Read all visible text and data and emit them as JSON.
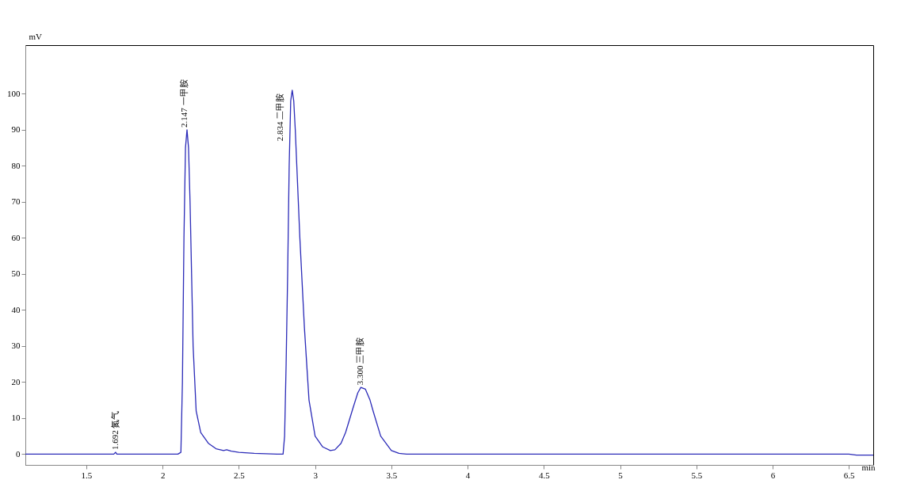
{
  "chart_data": {
    "type": "line",
    "xlabel": "min",
    "ylabel": "mV",
    "xlim": [
      1.1,
      6.66
    ],
    "ylim": [
      -3,
      113.5
    ],
    "xticks": [
      1.5,
      2,
      2.5,
      3,
      3.5,
      4,
      4.5,
      5,
      5.5,
      6,
      6.5
    ],
    "yticks": [
      0,
      10,
      20,
      30,
      40,
      50,
      60,
      70,
      80,
      90,
      100
    ],
    "grid": false,
    "marker": "none",
    "line_style": "solid",
    "series": [
      {
        "color": "#2b2bb8",
        "x": [
          1.1,
          1.6,
          1.68,
          1.692,
          1.7,
          1.8,
          2.0,
          2.1,
          2.12,
          2.13,
          2.14,
          2.15,
          2.16,
          2.17,
          2.18,
          2.19,
          2.2,
          2.22,
          2.25,
          2.3,
          2.35,
          2.4,
          2.42,
          2.45,
          2.5,
          2.6,
          2.75,
          2.79,
          2.8,
          2.81,
          2.82,
          2.83,
          2.84,
          2.85,
          2.86,
          2.87,
          2.88,
          2.9,
          2.93,
          2.96,
          3.0,
          3.05,
          3.1,
          3.13,
          3.17,
          3.2,
          3.25,
          3.28,
          3.3,
          3.33,
          3.36,
          3.38,
          3.43,
          3.5,
          3.55,
          3.6,
          4.5,
          6.5,
          6.55,
          6.66
        ],
        "values": [
          0,
          0,
          0,
          0.5,
          0,
          0,
          0,
          0,
          0.5,
          20,
          60,
          85,
          90,
          85,
          70,
          50,
          30,
          12,
          6,
          3,
          1.5,
          1,
          1.2,
          0.8,
          0.5,
          0.2,
          0,
          0,
          5,
          25,
          50,
          80,
          98,
          101,
          98,
          90,
          80,
          60,
          35,
          15,
          5,
          2,
          1,
          1.2,
          3,
          6,
          13,
          17,
          18.5,
          18,
          15,
          12,
          5,
          1,
          0.2,
          0,
          0,
          0,
          -0.3,
          -0.3
        ]
      }
    ],
    "annotations": [
      {
        "text": "1.692 氮气",
        "x": 1.692,
        "y": 0.5
      },
      {
        "text": "2.147 一甲胺",
        "x": 2.147,
        "y": 90
      },
      {
        "text": "2.834 二甲胺",
        "x": 2.834,
        "y": 101
      },
      {
        "text": "3.300 三甲胺",
        "x": 3.3,
        "y": 18.5
      }
    ]
  }
}
